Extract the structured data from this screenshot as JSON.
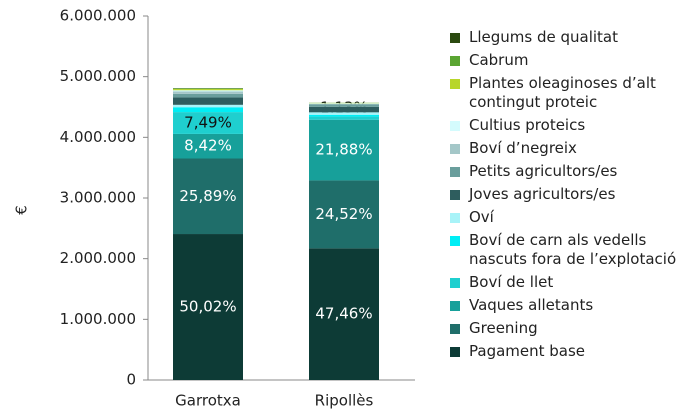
{
  "chart_data": {
    "type": "stacked_bar",
    "ylabel": "€",
    "categories": [
      "Garrotxa",
      "Ripollès"
    ],
    "ylim": [
      0,
      6000000
    ],
    "yticks": [
      {
        "value": 0,
        "label": "0"
      },
      {
        "value": 1000000,
        "label": "1.000.000"
      },
      {
        "value": 2000000,
        "label": "2.000.000"
      },
      {
        "value": 3000000,
        "label": "3.000.000"
      },
      {
        "value": 4000000,
        "label": "4.000.000"
      },
      {
        "value": 5000000,
        "label": "5.000.000"
      },
      {
        "value": 6000000,
        "label": "6.000.000"
      }
    ],
    "series": [
      {
        "name": "Pagament base",
        "color": "#0d3b36",
        "values": [
          2406000,
          2170000
        ],
        "value_labels": [
          "50,02%",
          "47,46%"
        ]
      },
      {
        "name": "Greening",
        "color": "#1f6e6a",
        "values": [
          1245000,
          1120000
        ],
        "value_labels": [
          "25,89%",
          "24,52%"
        ]
      },
      {
        "name": "Vaques alletants",
        "color": "#17a09a",
        "values": [
          405000,
          1000000
        ],
        "value_labels": [
          "8,42%",
          "21,88%"
        ]
      },
      {
        "name": "Boví de llet",
        "color": "#1fcfcf",
        "values": [
          360000,
          52000
        ],
        "value_labels": [
          "7,49%",
          "1,13%"
        ]
      },
      {
        "name": "Boví de carn als vedells nascuts fora de l’explotació",
        "color": "#00eef5",
        "values": [
          80000,
          30000
        ]
      },
      {
        "name": "Oví",
        "color": "#a8f3f8",
        "values": [
          40000,
          40000
        ]
      },
      {
        "name": "Joves agricultors/es",
        "color": "#2e5d5e",
        "values": [
          120000,
          90000
        ]
      },
      {
        "name": "Petits agricultors/es",
        "color": "#6a9e9c",
        "values": [
          60000,
          40000
        ]
      },
      {
        "name": "Boví d’negreix",
        "color": "#a4c7c8",
        "values": [
          40000,
          10000
        ]
      },
      {
        "name": "Cultius proteics",
        "color": "#d4fbfd",
        "values": [
          20000,
          10000
        ]
      },
      {
        "name": "Plantes oleaginoses d’alt contingut proteic",
        "color": "#b8d62a",
        "values": [
          20000,
          5000
        ]
      },
      {
        "name": "Cabrum",
        "color": "#5aa532",
        "values": [
          10000,
          3000
        ]
      },
      {
        "name": "Llegums de qualitat",
        "color": "#2b4a10",
        "values": [
          4000,
          0
        ]
      }
    ]
  }
}
